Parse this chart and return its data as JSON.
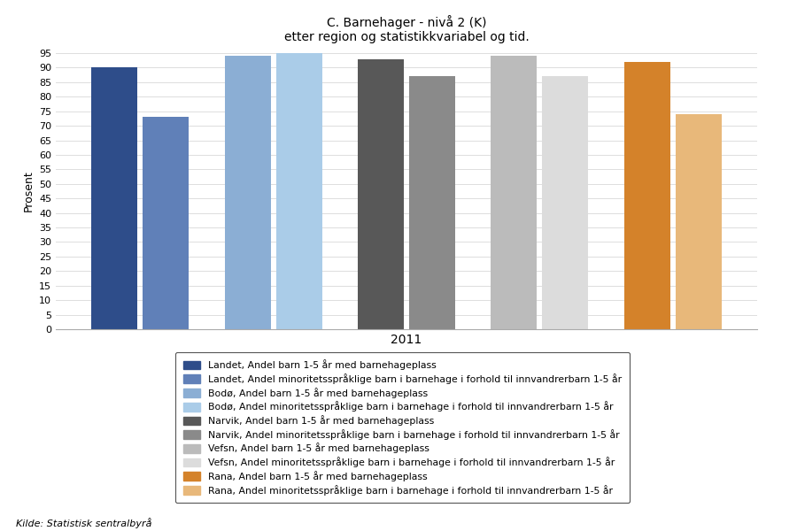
{
  "title_line1": "C. Barnehager - nivå 2 (K)",
  "title_line2": "etter region og statistikkvariabel og tid.",
  "ylabel": "Prosent",
  "xlabel_year": "2011",
  "ylim": [
    0,
    95
  ],
  "yticks": [
    0,
    5,
    10,
    15,
    20,
    25,
    30,
    35,
    40,
    45,
    50,
    55,
    60,
    65,
    70,
    75,
    80,
    85,
    90,
    95
  ],
  "groups": [
    {
      "bars": [
        {
          "label": "Landet, Andel barn 1-5 år med barnehageplass",
          "value": 90.0,
          "color": "#2E4D8A"
        },
        {
          "label": "Landet, Andel minoritetsspråklige barn i barnehage i forhold til innvandrerbarn 1-5 år",
          "value": 73.0,
          "color": "#6080B8"
        }
      ]
    },
    {
      "bars": [
        {
          "label": "Bodø, Andel barn 1-5 år med barnehageplass",
          "value": 94.0,
          "color": "#8BAED4"
        },
        {
          "label": "Bodø, Andel minoritetsspråklige barn i barnehage i forhold til innvandrerbarn 1-5 år",
          "value": 96.0,
          "color": "#AACCE8"
        }
      ]
    },
    {
      "bars": [
        {
          "label": "Narvik, Andel barn 1-5 år med barnehageplass",
          "value": 93.0,
          "color": "#585858"
        },
        {
          "label": "Narvik, Andel minoritetsspråklige barn i barnehage i forhold til innvandrerbarn 1-5 år",
          "value": 87.0,
          "color": "#8A8A8A"
        }
      ]
    },
    {
      "bars": [
        {
          "label": "Vefsn, Andel barn 1-5 år med barnehageplass",
          "value": 94.0,
          "color": "#BBBBBB"
        },
        {
          "label": "Vefsn, Andel minoritetsspråklige barn i barnehage i forhold til innvandrerbarn 1-5 år",
          "value": 87.0,
          "color": "#DCDCDC"
        }
      ]
    },
    {
      "bars": [
        {
          "label": "Rana, Andel barn 1-5 år med barnehageplass",
          "value": 92.0,
          "color": "#D4822A"
        },
        {
          "label": "Rana, Andel minoritetsspråklige barn i barnehage i forhold til innvandrerbarn 1-5 år",
          "value": 74.0,
          "color": "#E8B87A"
        }
      ]
    }
  ],
  "source_text": "Kilde: Statistisk sentralbyrå",
  "background_color": "#FFFFFF",
  "grid_color": "#DDDDDD"
}
